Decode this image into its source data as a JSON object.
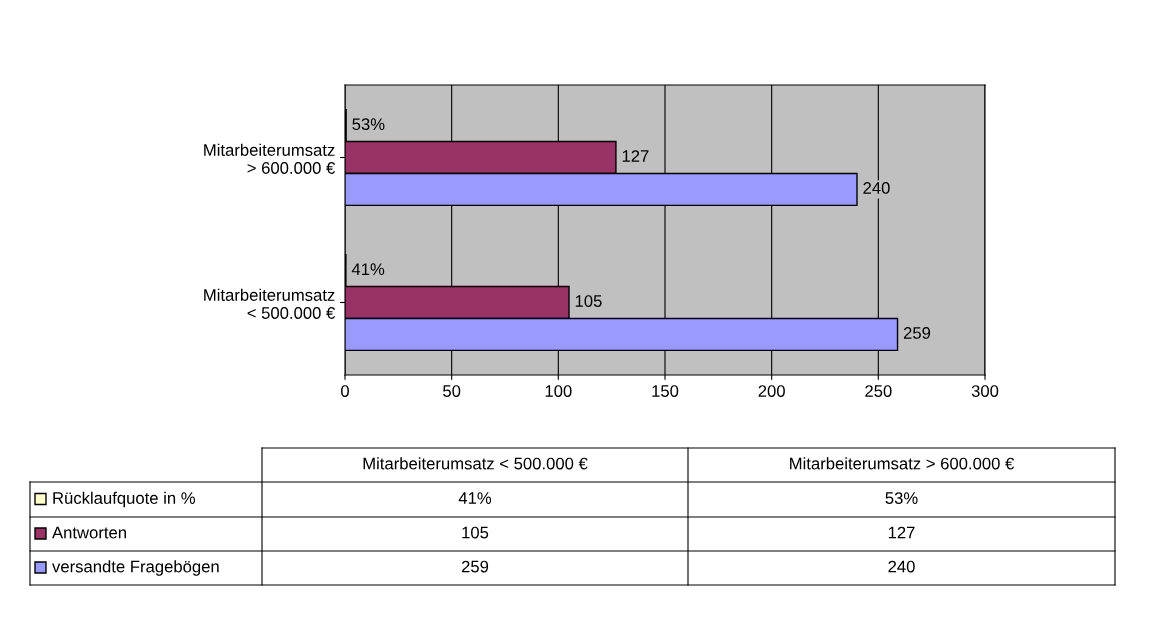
{
  "chart_data": {
    "type": "bar",
    "orientation": "horizontal",
    "categories": [
      "Mitarbeiterumsatz > 600.000 €",
      "Mitarbeiterumsatz < 500.000 €"
    ],
    "series": [
      {
        "name": "Rücklaufquote in %",
        "color": "#ffffcc",
        "values": [
          0.53,
          0.41
        ],
        "value_labels": [
          "53%",
          "41%"
        ]
      },
      {
        "name": "Antworten",
        "color": "#993366",
        "values": [
          127,
          105
        ],
        "value_labels": [
          "127",
          "105"
        ]
      },
      {
        "name": "versandte Fragebögen",
        "color": "#9999ff",
        "values": [
          240,
          259
        ],
        "value_labels": [
          "240",
          "259"
        ]
      }
    ],
    "xlim": [
      0,
      300
    ],
    "xticks": [
      0,
      50,
      100,
      150,
      200,
      250,
      300
    ],
    "grid": "x",
    "legend": "bottom"
  }
}
